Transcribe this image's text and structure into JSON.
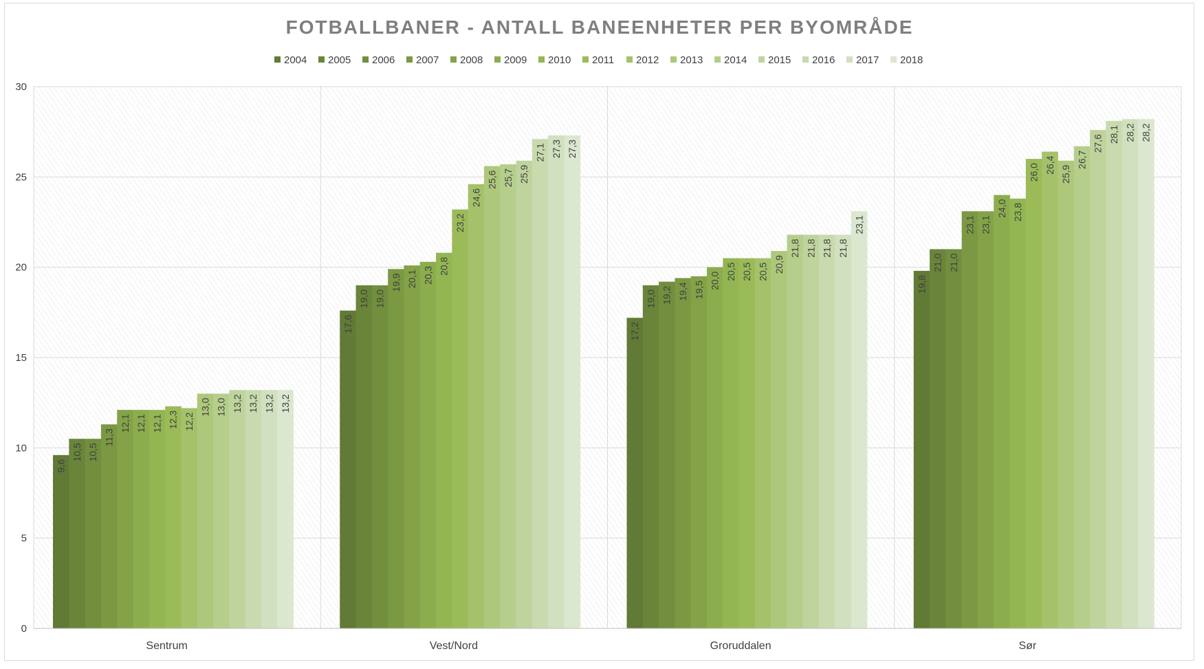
{
  "chart_data": {
    "type": "bar",
    "title": "FOTBALLBANER - ANTALL BANEENHETER PER BYOMRÅDE",
    "xlabel": "",
    "ylabel": "",
    "ylim": [
      0,
      30
    ],
    "yticks": [
      "0",
      "5",
      "10",
      "15",
      "20",
      "25",
      "30"
    ],
    "grid": true,
    "legend_position": "top",
    "categories": [
      "Sentrum",
      "Vest/Nord",
      "Groruddalen",
      "Sør"
    ],
    "series": [
      {
        "name": "2004",
        "color": "#617a36",
        "values": [
          9.6,
          17.6,
          17.2,
          19.8
        ],
        "labels": [
          "9,6",
          "17,6",
          "17,2",
          "19,8"
        ]
      },
      {
        "name": "2005",
        "color": "#69853a",
        "values": [
          10.5,
          19.0,
          19.0,
          21.0
        ],
        "labels": [
          "10,5",
          "19,0",
          "19,0",
          "21,0"
        ]
      },
      {
        "name": "2006",
        "color": "#718f3e",
        "values": [
          10.5,
          19.0,
          19.2,
          21.0
        ],
        "labels": [
          "10,5",
          "19,0",
          "19,2",
          "21,0"
        ]
      },
      {
        "name": "2007",
        "color": "#7b9943",
        "values": [
          11.3,
          19.9,
          19.4,
          23.1
        ],
        "labels": [
          "11,3",
          "19,9",
          "19,4",
          "23,1"
        ]
      },
      {
        "name": "2008",
        "color": "#84a348",
        "values": [
          12.1,
          20.1,
          19.5,
          23.1
        ],
        "labels": [
          "12,1",
          "20,1",
          "19,5",
          "23,1"
        ]
      },
      {
        "name": "2009",
        "color": "#8cad4d",
        "values": [
          12.1,
          20.3,
          20.0,
          24.0
        ],
        "labels": [
          "12,1",
          "20,3",
          "20,0",
          "24,0"
        ]
      },
      {
        "name": "2010",
        "color": "#93b653",
        "values": [
          12.1,
          20.8,
          20.5,
          23.8
        ],
        "labels": [
          "12,1",
          "20,8",
          "20,5",
          "23,8"
        ]
      },
      {
        "name": "2011",
        "color": "#9bbb59",
        "values": [
          12.3,
          23.2,
          20.5,
          26.0
        ],
        "labels": [
          "12,3",
          "23,2",
          "20,5",
          "26,0"
        ]
      },
      {
        "name": "2012",
        "color": "#a4c26a",
        "values": [
          12.2,
          24.6,
          20.5,
          26.4
        ],
        "labels": [
          "12,2",
          "24,6",
          "20,5",
          "26,4"
        ]
      },
      {
        "name": "2013",
        "color": "#adc87b",
        "values": [
          13.0,
          25.6,
          20.9,
          25.9
        ],
        "labels": [
          "13,0",
          "25,6",
          "20,9",
          "25,9"
        ]
      },
      {
        "name": "2014",
        "color": "#b6ce8c",
        "values": [
          13.0,
          25.7,
          21.8,
          26.7
        ],
        "labels": [
          "13,0",
          "25,7",
          "21,8",
          "26,7"
        ]
      },
      {
        "name": "2015",
        "color": "#bfd49d",
        "values": [
          13.2,
          25.9,
          21.8,
          27.6
        ],
        "labels": [
          "13,2",
          "25,9",
          "21,8",
          "27,6"
        ]
      },
      {
        "name": "2016",
        "color": "#c8daae",
        "values": [
          13.2,
          27.1,
          21.8,
          28.1
        ],
        "labels": [
          "13,2",
          "27,1",
          "21,8",
          "28,1"
        ]
      },
      {
        "name": "2017",
        "color": "#d1e0bf",
        "values": [
          13.2,
          27.3,
          21.8,
          28.2
        ],
        "labels": [
          "13,2",
          "27,3",
          "21,8",
          "28,2"
        ]
      },
      {
        "name": "2018",
        "color": "#dbe7cf",
        "values": [
          13.2,
          27.3,
          23.1,
          28.2
        ],
        "labels": [
          "13,2",
          "27,3",
          "23,1",
          "28,2"
        ]
      }
    ]
  }
}
